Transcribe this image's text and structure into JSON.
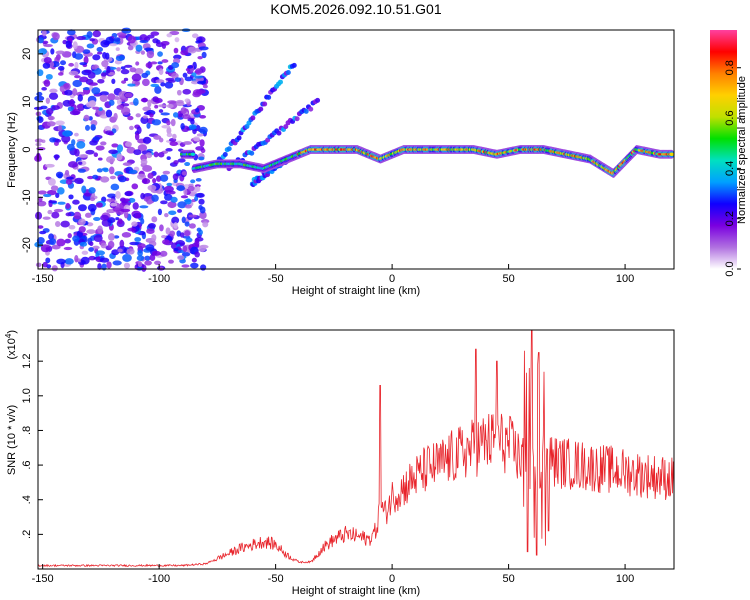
{
  "title": "KOM5.2026.092.10.51.G01",
  "chart_data": [
    {
      "type": "heatmap",
      "name": "spectrogram",
      "xlabel": "Height of straight line (km)",
      "ylabel": "Frequency (Hz)",
      "xlim": [
        -152,
        121
      ],
      "ylim": [
        -25,
        25
      ],
      "x_ticks": [
        -150,
        -100,
        -50,
        0,
        50,
        100
      ],
      "y_ticks": [
        -20,
        -10,
        0,
        10,
        20
      ],
      "grid": false,
      "colorbar": {
        "label": "Normalized spectral amplitude",
        "range": [
          0,
          0.95
        ],
        "ticks": [
          0.0,
          0.2,
          0.4,
          0.6,
          0.8
        ],
        "tick_labels": [
          "0.0",
          "0.2",
          "0.4",
          "0.6",
          "0.8"
        ],
        "colors": [
          "#ffffff",
          "#b070e0",
          "#7a00e0",
          "#1000ff",
          "#00a0ff",
          "#00e0c0",
          "#00e000",
          "#c0e000",
          "#ffd000",
          "#ff8000",
          "#ff0000",
          "#ff40a0"
        ]
      },
      "ridge": {
        "description_points_x": [
          -85,
          -75,
          -65,
          -55,
          -45,
          -35,
          -25,
          -15,
          -5,
          5,
          15,
          25,
          35,
          45,
          55,
          65,
          75,
          85,
          95,
          105,
          115,
          120
        ],
        "description_points_y": [
          -4,
          -3,
          -3,
          -4,
          -2,
          0,
          0,
          0,
          -2,
          0,
          0,
          0,
          0,
          -1,
          0,
          0,
          -1,
          -2,
          -5,
          0,
          -1,
          -1
        ]
      }
    },
    {
      "type": "line",
      "name": "snr",
      "xlabel": "Height of straight line (km)",
      "ylabel": "SNR (10 * v/v)",
      "y_exponent_label": "(x10",
      "y_exponent_power": "4",
      "y_exponent_close": ")",
      "xlim": [
        -152,
        121
      ],
      "ylim": [
        0,
        1.38
      ],
      "x_ticks": [
        -150,
        -100,
        -50,
        0,
        50,
        100
      ],
      "y_ticks": [
        0.2,
        0.4,
        0.6,
        0.8,
        1.0,
        1.2
      ],
      "grid": false,
      "color": "#e8242b",
      "envelope_x": [
        -152,
        -120,
        -90,
        -80,
        -75,
        -65,
        -55,
        -50,
        -45,
        -40,
        -35,
        -30,
        -25,
        -20,
        -15,
        -10,
        -7,
        -5,
        -3,
        0,
        5,
        10,
        15,
        20,
        25,
        30,
        35,
        40,
        45,
        50,
        55,
        60,
        63,
        65,
        70,
        80,
        90,
        100,
        110,
        121
      ],
      "envelope_y": [
        0.02,
        0.02,
        0.02,
        0.03,
        0.06,
        0.12,
        0.16,
        0.14,
        0.08,
        0.04,
        0.04,
        0.12,
        0.17,
        0.2,
        0.19,
        0.17,
        0.22,
        0.36,
        0.32,
        0.42,
        0.47,
        0.53,
        0.58,
        0.6,
        0.64,
        0.67,
        0.7,
        0.73,
        0.74,
        0.72,
        0.64,
        0.58,
        0.6,
        0.66,
        0.62,
        0.6,
        0.58,
        0.56,
        0.54,
        0.52
      ],
      "peaks": [
        {
          "x": -5,
          "y": 1.06
        },
        {
          "x": 36,
          "y": 1.27
        },
        {
          "x": 45,
          "y": 1.2
        },
        {
          "x": 57,
          "y": 1.26
        },
        {
          "x": 60,
          "y": 1.38
        },
        {
          "x": 63,
          "y": 1.25
        }
      ],
      "dips": [
        {
          "x": 58,
          "y": 0.1
        },
        {
          "x": 62,
          "y": 0.08
        },
        {
          "x": 67,
          "y": 0.22
        }
      ]
    }
  ]
}
